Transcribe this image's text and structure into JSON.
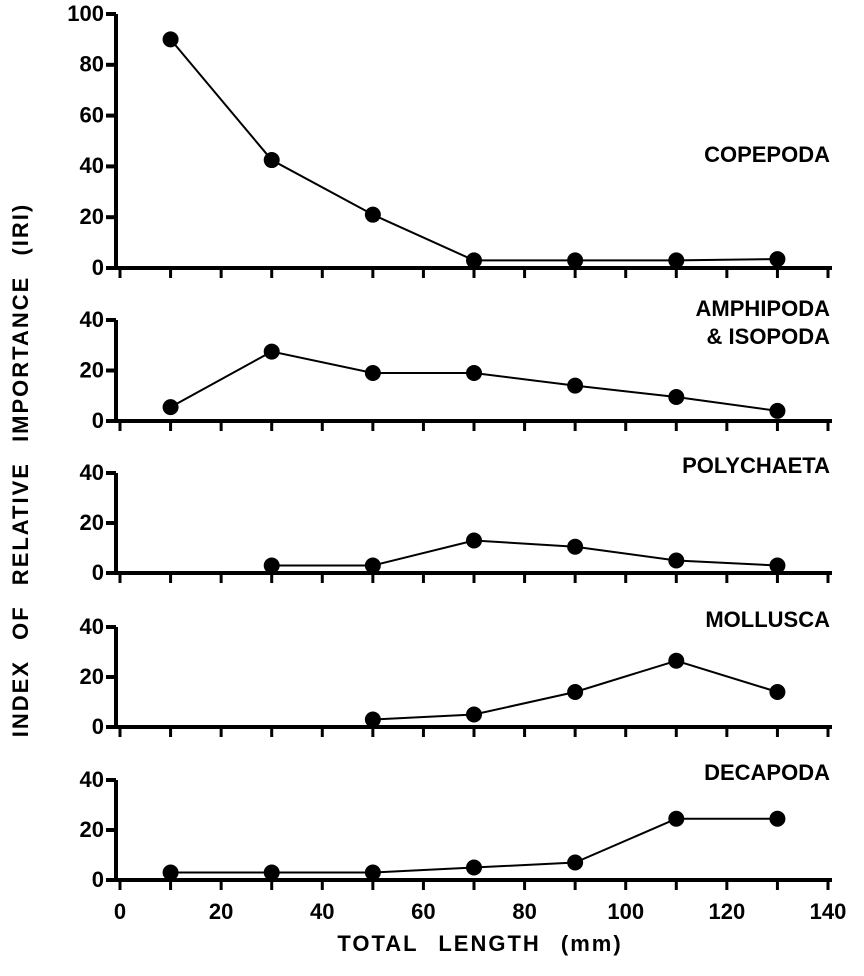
{
  "chart_data": [
    {
      "type": "line",
      "title": "COPEPODA",
      "ylabel": "INDEX OF RELATIVE IMPORTANCE (IRI)",
      "x": [
        10,
        30,
        50,
        70,
        90,
        110,
        130
      ],
      "values": [
        90,
        42.5,
        21,
        3,
        3,
        3,
        3.5
      ],
      "color": "#000000",
      "xlim": [
        0,
        140
      ],
      "ylim": [
        0,
        100
      ],
      "yticks": [
        0,
        20,
        40,
        60,
        80,
        100
      ]
    },
    {
      "type": "line",
      "title": [
        "AMPHIPODA",
        "& ISOPODA"
      ],
      "x": [
        10,
        30,
        50,
        70,
        90,
        110,
        130
      ],
      "values": [
        5.5,
        27.5,
        19,
        19,
        14,
        9.5,
        4
      ],
      "color": "#000000",
      "xlim": [
        0,
        140
      ],
      "ylim": [
        0,
        40
      ],
      "yticks": [
        0,
        20,
        40
      ]
    },
    {
      "type": "line",
      "title": "POLYCHAETA",
      "x": [
        10,
        30,
        50,
        70,
        90,
        110,
        130
      ],
      "values": [
        null,
        3,
        3,
        13,
        10.5,
        5,
        3
      ],
      "color": "#000000",
      "xlim": [
        0,
        140
      ],
      "ylim": [
        0,
        40
      ],
      "yticks": [
        0,
        20,
        40
      ]
    },
    {
      "type": "line",
      "title": "MOLLUSCA",
      "x": [
        10,
        30,
        50,
        70,
        90,
        110,
        130
      ],
      "values": [
        null,
        null,
        3,
        5,
        14,
        26.5,
        14
      ],
      "color": "#000000",
      "xlim": [
        0,
        140
      ],
      "ylim": [
        0,
        40
      ],
      "yticks": [
        0,
        20,
        40
      ]
    },
    {
      "type": "line",
      "title": "DECAPODA",
      "xlabel": "TOTAL LENGTH (mm)",
      "x": [
        10,
        30,
        50,
        70,
        90,
        110,
        130
      ],
      "values": [
        3,
        3,
        3,
        5,
        7,
        24.5,
        24.5
      ],
      "color": "#000000",
      "xlim": [
        0,
        140
      ],
      "ylim": [
        0,
        40
      ],
      "yticks": [
        0,
        20,
        40
      ],
      "xticks": [
        0,
        20,
        40,
        60,
        80,
        100,
        120,
        140
      ]
    }
  ]
}
